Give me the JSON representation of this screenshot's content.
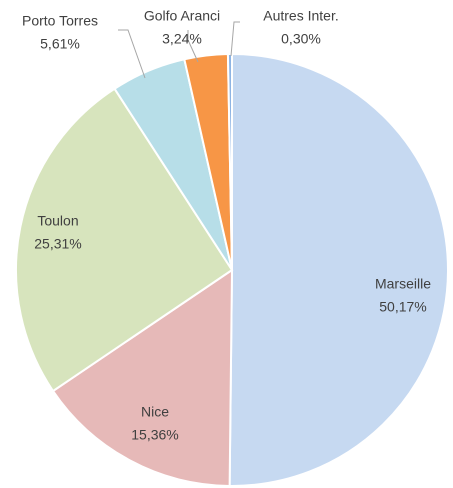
{
  "chart_data": {
    "type": "pie",
    "categories": [
      "Marseille",
      "Nice",
      "Toulon",
      "Porto Torres",
      "Golfo Aranci",
      "Autres Inter."
    ],
    "values": [
      50.17,
      15.36,
      25.31,
      5.61,
      3.24,
      0.3
    ],
    "value_labels": [
      "50,17%",
      "15,36%",
      "25,31%",
      "5,61%",
      "3,24%",
      "0,30%"
    ],
    "colors": [
      "#c6d9f1",
      "#e6b9b8",
      "#d7e4bd",
      "#b7dee8",
      "#f79646",
      "#8eb4e3"
    ]
  }
}
